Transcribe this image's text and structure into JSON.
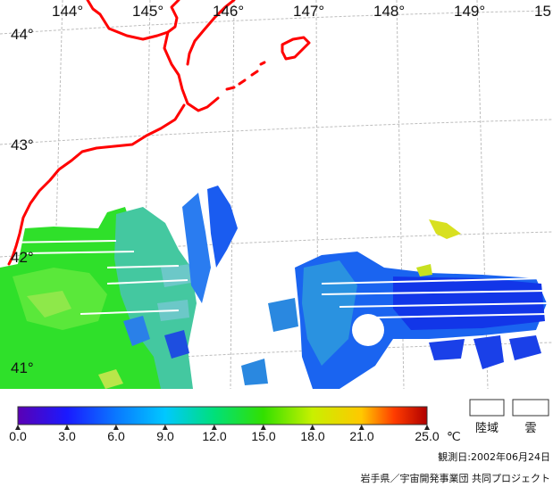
{
  "map": {
    "longitude_labels": [
      "144°",
      "145°",
      "146°",
      "147°",
      "148°",
      "149°",
      "15"
    ],
    "latitude_labels": [
      "44°",
      "43°",
      "42°",
      "41°"
    ]
  },
  "colorbar": {
    "tick_labels": [
      "0.0",
      "3.0",
      "6.0",
      "9.0",
      "12.0",
      "15.0",
      "18.0",
      "21.0",
      "25.0"
    ],
    "unit": "℃",
    "min": 0,
    "max": 25,
    "colors": [
      "#5a00b4",
      "#1a1aff",
      "#0a78ff",
      "#00c8ff",
      "#00e07a",
      "#32e000",
      "#c8f000",
      "#ffc800",
      "#ff3c00",
      "#b00000"
    ]
  },
  "legend_boxes": {
    "land": "陸域",
    "cloud": "雲"
  },
  "observation_date": "観測日:2002年06月24日",
  "credit": "岩手県／宇宙開発事業団 共同プロジェクト"
}
